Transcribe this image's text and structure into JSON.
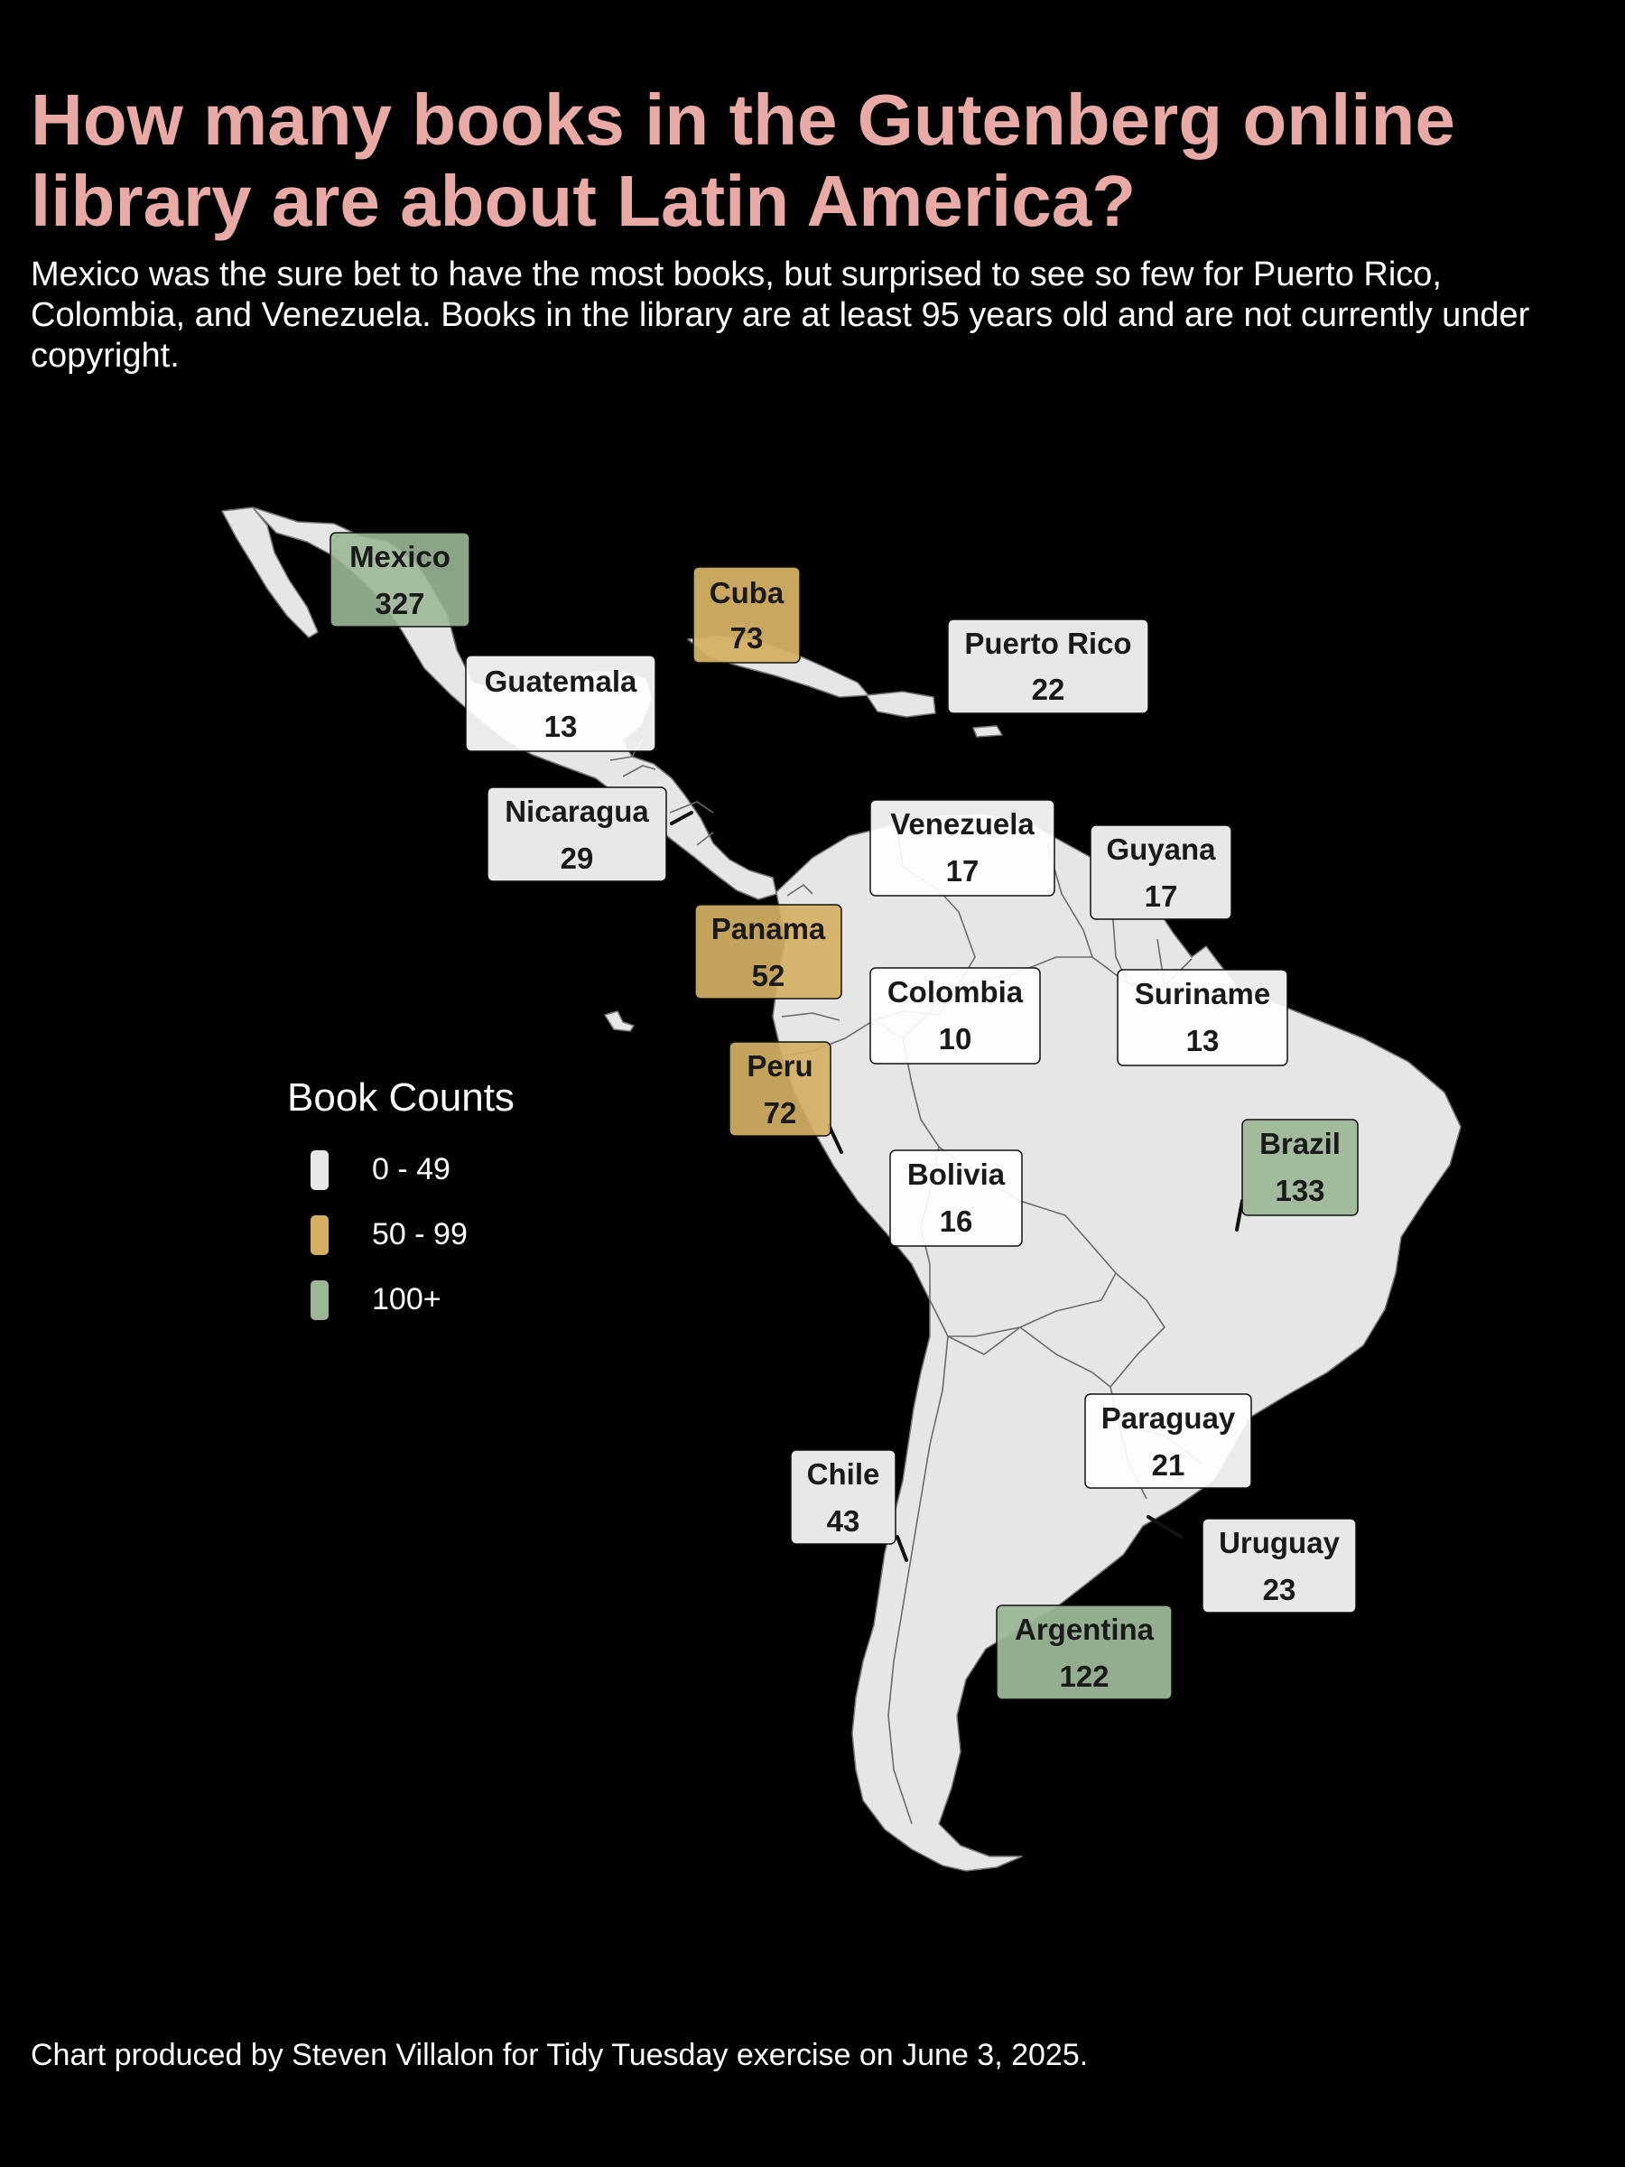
{
  "title": "How many books in the Gutenberg online library are about Latin America?",
  "subtitle": "Mexico was the sure bet to have the most books, but surprised to see so few for Puerto Rico, Colombia, and Venezuela. Books in the library are at least 95 years old and are not currently under copyright.",
  "caption": "Chart produced by Steven Villalon for Tidy Tuesday exercise on June 3, 2025.",
  "colors": {
    "background": "#000000",
    "title": "#e9a9a4",
    "land": "#e6e6e6",
    "border": "#6b6b6b",
    "tier_low": "#e8e8e8",
    "tier_mid": "#d4b063",
    "tier_high": "#9bb796"
  },
  "legend": {
    "title": "Book Counts",
    "items": [
      {
        "label": "0 - 49",
        "color": "#e8e8e8"
      },
      {
        "label": "50 - 99",
        "color": "#d4b063"
      },
      {
        "label": "100+",
        "color": "#9bb796"
      }
    ]
  },
  "countries": [
    {
      "name": "Mexico",
      "count": "327",
      "tier": "high"
    },
    {
      "name": "Cuba",
      "count": "73",
      "tier": "mid"
    },
    {
      "name": "Puerto Rico",
      "count": "22",
      "tier": "low"
    },
    {
      "name": "Guatemala",
      "count": "13",
      "tier": "low"
    },
    {
      "name": "Nicaragua",
      "count": "29",
      "tier": "low"
    },
    {
      "name": "Venezuela",
      "count": "17",
      "tier": "low"
    },
    {
      "name": "Guyana",
      "count": "17",
      "tier": "low"
    },
    {
      "name": "Panama",
      "count": "52",
      "tier": "mid"
    },
    {
      "name": "Colombia",
      "count": "10",
      "tier": "low"
    },
    {
      "name": "Suriname",
      "count": "13",
      "tier": "low"
    },
    {
      "name": "Peru",
      "count": "72",
      "tier": "mid"
    },
    {
      "name": "Brazil",
      "count": "133",
      "tier": "high"
    },
    {
      "name": "Bolivia",
      "count": "16",
      "tier": "low"
    },
    {
      "name": "Paraguay",
      "count": "21",
      "tier": "low"
    },
    {
      "name": "Chile",
      "count": "43",
      "tier": "low"
    },
    {
      "name": "Uruguay",
      "count": "23",
      "tier": "low"
    },
    {
      "name": "Argentina",
      "count": "122",
      "tier": "high"
    }
  ]
}
